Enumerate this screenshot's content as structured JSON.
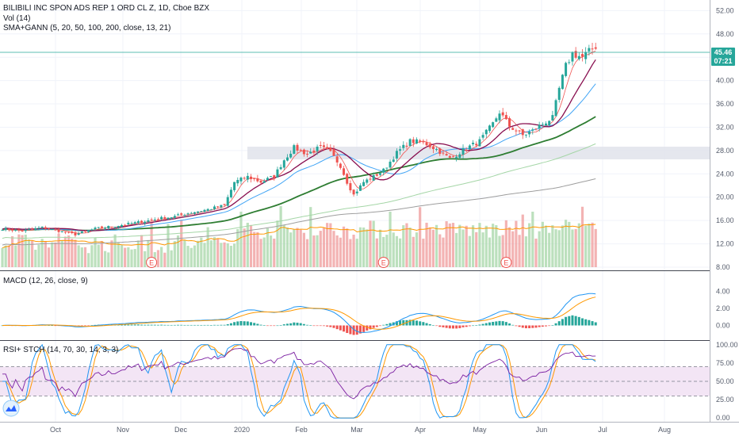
{
  "header": {
    "title": "BILIBILI INC SPON ADS REP 1 ORD CL Z, 1D, Cboe BZX",
    "vol": "Vol (14)",
    "sma": "SMA+GANN (5, 20, 50, 100, 200, close, 13, 21)"
  },
  "macd_label": "MACD (12, 26, close, 9)",
  "rsi_label": "RSI+ STCH (14, 70, 30, 14, 3, 3)",
  "price_badge": {
    "price": "45.46",
    "time": "07:21"
  },
  "earnings_marker": "E",
  "colors": {
    "up": "#26a69a",
    "down": "#ef5350",
    "sma5": "#ef5350",
    "sma20": "#42a5f5",
    "sma50": "#2e7d32",
    "sma100": "#a5d6a7",
    "sma200": "#9e9e9e",
    "gann": "#880e4f",
    "macd": "#2196f3",
    "signal": "#ff9800",
    "rsi": "#7b1fa2",
    "stochK": "#2196f3",
    "stochD": "#ff9800",
    "band": "#f3e5f5",
    "badge": "#26a69a"
  },
  "chart_data": [
    {
      "type": "candlestick",
      "title": "BILIBILI INC SPON ADS REP 1 ORD CL Z, 1D, Cboe BZX",
      "x_ticks": [
        "Oct",
        "Nov",
        "Dec",
        "2020",
        "Feb",
        "Mar",
        "Apr",
        "May",
        "Jun",
        "Jul",
        "Aug"
      ],
      "y_ticks": [
        "8.00",
        "12.00",
        "16.00",
        "20.00",
        "24.00",
        "28.00",
        "32.00",
        "36.00",
        "40.00",
        "44.00",
        "48.00",
        "52.00"
      ],
      "ylim": [
        8,
        53
      ],
      "last_price": 45.46,
      "close_path": [
        [
          0,
          14.6
        ],
        [
          6,
          14.2
        ],
        [
          12,
          14.8
        ],
        [
          18,
          14.1
        ],
        [
          22,
          13.6
        ],
        [
          28,
          14.6
        ],
        [
          33,
          15.0
        ],
        [
          38,
          15.4
        ],
        [
          43,
          15.9
        ],
        [
          48,
          16.4
        ],
        [
          52,
          16.7
        ],
        [
          57,
          17.4
        ],
        [
          62,
          17.9
        ],
        [
          67,
          18.6
        ],
        [
          70,
          22.6
        ],
        [
          74,
          23.5
        ],
        [
          78,
          22.6
        ],
        [
          82,
          23.6
        ],
        [
          85,
          26.4
        ],
        [
          88,
          28.5
        ],
        [
          92,
          27.4
        ],
        [
          96,
          28.6
        ],
        [
          99,
          27.6
        ],
        [
          102,
          25.4
        ],
        [
          104,
          22.6
        ],
        [
          106,
          20.4
        ],
        [
          109,
          22.6
        ],
        [
          112,
          23.5
        ],
        [
          115,
          24.6
        ],
        [
          119,
          27.6
        ],
        [
          123,
          29.6
        ],
        [
          127,
          29.4
        ],
        [
          131,
          28.2
        ],
        [
          135,
          26.6
        ],
        [
          140,
          28.4
        ],
        [
          144,
          29.6
        ],
        [
          148,
          32.6
        ],
        [
          150,
          34.6
        ],
        [
          153,
          32.2
        ],
        [
          157,
          30.6
        ],
        [
          160,
          31.4
        ],
        [
          163,
          32.6
        ],
        [
          166,
          33.6
        ],
        [
          168,
          38.6
        ],
        [
          170,
          42.5
        ],
        [
          172,
          44.6
        ],
        [
          175,
          44.0
        ],
        [
          178,
          45.46
        ]
      ],
      "earnings_days": [
        45,
        115,
        152
      ]
    },
    {
      "type": "bar",
      "title": "Vol (14)",
      "seed": 7
    },
    {
      "type": "line",
      "title": "MACD (12, 26, close, 9)",
      "y_ticks": [
        "0.00",
        "2.00",
        "4.00"
      ],
      "ylim": [
        -1.35,
        4.8
      ]
    },
    {
      "type": "line",
      "title": "RSI+ STCH (14, 70, 30, 14, 3, 3)",
      "y_ticks": [
        "0.00",
        "25.00",
        "50.00",
        "75.00",
        "100.00"
      ],
      "ylim": [
        -3,
        103
      ],
      "bands": [
        30,
        50,
        70
      ]
    }
  ]
}
